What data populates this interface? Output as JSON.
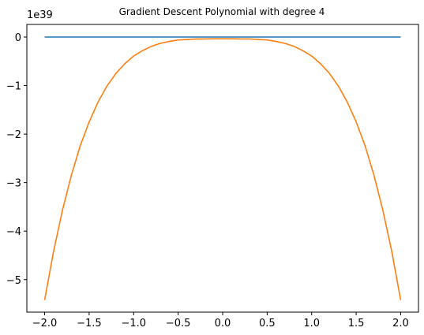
{
  "chart_data": {
    "type": "line",
    "title": "Gradient Descent Polynomial with degree 4",
    "xlabel": "",
    "ylabel": "",
    "y_scale_label": "1e39",
    "xlim": [
      -2.2,
      2.2
    ],
    "ylim": [
      -5.67,
      0.26
    ],
    "x_ticks": [
      -2.0,
      -1.5,
      -1.0,
      -0.5,
      0.0,
      0.5,
      1.0,
      1.5,
      2.0
    ],
    "x_tick_labels": [
      "−2.0",
      "−1.5",
      "−1.0",
      "−0.5",
      "0.0",
      "0.5",
      "1.0",
      "1.5",
      "2.0"
    ],
    "y_ticks": [
      0,
      -1,
      -2,
      -3,
      -4,
      -5
    ],
    "y_tick_labels": [
      "0",
      "−1",
      "−2",
      "−3",
      "−4",
      "−5"
    ],
    "grid": false,
    "legend": "none",
    "series": [
      {
        "color": "#1f77b4",
        "x": [
          -2.0,
          2.0
        ],
        "y": [
          0.0,
          0.0
        ]
      },
      {
        "color": "#ff7f0e",
        "x": [
          -2.0,
          -1.9,
          -1.8,
          -1.7,
          -1.6,
          -1.5,
          -1.4,
          -1.3,
          -1.2,
          -1.1,
          -1.0,
          -0.9,
          -0.8,
          -0.7,
          -0.6,
          -0.5,
          -0.4,
          -0.3,
          -0.2,
          -0.1,
          0.0,
          0.1,
          0.2,
          0.3,
          0.4,
          0.5,
          0.6,
          0.7,
          0.8,
          0.9,
          1.0,
          1.1,
          1.2,
          1.3,
          1.4,
          1.5,
          1.6,
          1.7,
          1.8,
          1.9,
          2.0
        ],
        "y": [
          -5.42,
          -4.42,
          -3.57,
          -2.85,
          -2.24,
          -1.75,
          -1.34,
          -1.01,
          -0.75,
          -0.55,
          -0.39,
          -0.28,
          -0.19,
          -0.13,
          -0.09,
          -0.06,
          -0.05,
          -0.04,
          -0.04,
          -0.035,
          -0.035,
          -0.035,
          -0.04,
          -0.04,
          -0.05,
          -0.06,
          -0.09,
          -0.13,
          -0.19,
          -0.28,
          -0.39,
          -0.55,
          -0.75,
          -1.01,
          -1.34,
          -1.75,
          -2.24,
          -2.85,
          -3.57,
          -4.42,
          -5.42
        ]
      }
    ]
  }
}
